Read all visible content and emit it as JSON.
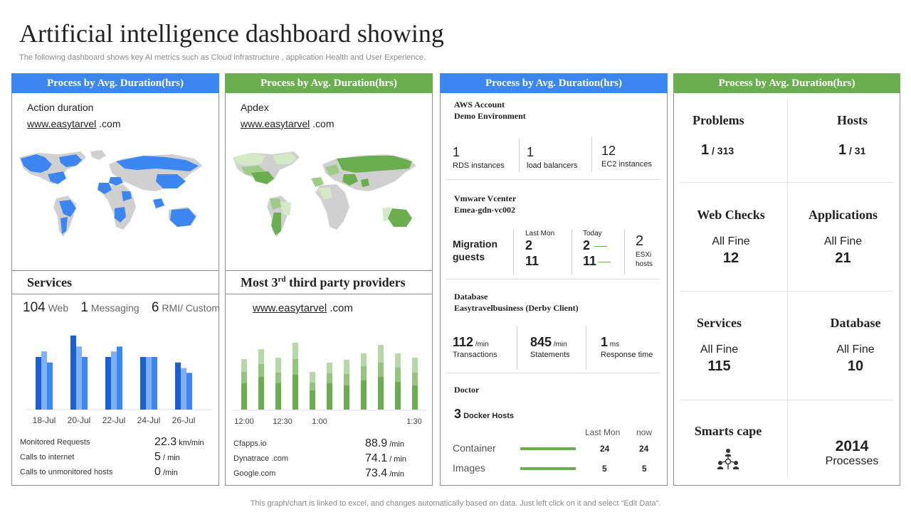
{
  "page": {
    "title": "Artificial intelligence dashboard showing",
    "subtitle": "The following dashboard shows key AI  metrics such as Cloud infrastructure , application Health and User Experience.",
    "footer": "This graph/chart is linked to excel,  and changes automatically based on data. Just left click on it and select “Edit Data”."
  },
  "colors": {
    "blue": "#3b86f0",
    "green": "#6aae4f",
    "dark_blue": "#1a5fd6",
    "light_blue": "#7fb0f2",
    "light_green": "#b7d8a6"
  },
  "panel1": {
    "header": "Process by Avg. Duration(hrs)",
    "label": "Action duration",
    "link_a": "www.easy",
    "link_b": "tarvel",
    "link_c": " .com",
    "map_icon": "world-map-blue",
    "section_title": "Services",
    "stats": [
      {
        "value": "104",
        "label": " Web"
      },
      {
        "value": "1",
        "label": " Messaging"
      },
      {
        "value": "6",
        "label": " RMI/ Custom"
      }
    ],
    "chart_data": {
      "type": "bar",
      "categories": [
        "18-Jul",
        "20-Jul",
        "22-Jul",
        "24-Jul",
        "26-Jul"
      ],
      "series": [
        {
          "values": [
            76,
            107,
            76,
            76,
            68
          ]
        },
        {
          "values": [
            84,
            91,
            84,
            76,
            60
          ]
        },
        {
          "values": [
            68,
            76,
            91,
            76,
            53
          ]
        }
      ],
      "ylim": [
        0,
        115
      ]
    },
    "metrics": [
      {
        "label": "Monitored Requests",
        "value": "22.3",
        "unit": " km/min"
      },
      {
        "label": "Calls to internet",
        "value": "5",
        "unit": "  / min"
      },
      {
        "label": "Calls to unmonitored hosts",
        "value": "0",
        "unit": " /min"
      }
    ]
  },
  "panel2": {
    "header": "Process by Avg. Duration(hrs)",
    "label": "Apdex",
    "link_a": "www.easy",
    "link_b": "tarvel",
    "link_c": " .com",
    "map_icon": "world-map-green",
    "section_title_a": "Most 3",
    "section_title_sup": "rd",
    "section_title_b": "  third party providers",
    "link2_a": "www.easy",
    "link2_b": "tarvel",
    "link2_c": "  .com",
    "chart_data": {
      "type": "bar",
      "x_ticks": [
        "12:00",
        "12:30",
        "1:00",
        "1:30"
      ],
      "series": [
        {
          "values": [
            37,
            46,
            37,
            49,
            27,
            37,
            34,
            41,
            46,
            39,
            34
          ]
        },
        {
          "values": [
            16,
            18,
            15,
            22,
            11,
            14,
            16,
            20,
            20,
            20,
            18
          ]
        },
        {
          "values": [
            18,
            21,
            21,
            23,
            15,
            15,
            20,
            18,
            25,
            20,
            21
          ]
        }
      ],
      "ylim": [
        0,
        100
      ]
    },
    "metrics": [
      {
        "label": "Cfapps.io",
        "value": "88.9",
        "unit": " /min"
      },
      {
        "label": "Dynatrace .com",
        "value": "74.1",
        "unit": " / min"
      },
      {
        "label": "Google.com",
        "value": "73.4",
        "unit": " /min"
      }
    ]
  },
  "panel3": {
    "header": "Process by Avg. Duration(hrs)",
    "aws": {
      "title_1": "AWS Account",
      "title_2": "Demo  Environment",
      "stats": [
        {
          "value": "1",
          "label": "RDS instances"
        },
        {
          "value": "1",
          "label": "load balancers"
        },
        {
          "value": "12",
          "label": "EC2 instances"
        }
      ]
    },
    "vmware": {
      "title_1": "Vmware  Vcenter",
      "title_2": "Emea-gdn-vc002",
      "label_1": "Migration",
      "label_2": "guests",
      "last_mon_label": "Last Mon",
      "last_mon_1": "2",
      "last_mon_2": "11",
      "today_label": "Today",
      "today_1": "2",
      "today_2": "11",
      "esxi_value": "2",
      "esxi_label_1": "ESXi",
      "esxi_label_2": "hosts"
    },
    "database": {
      "title_1": "Database",
      "title_2": "Easytravelbusiness  (Derby  Client)",
      "stats": [
        {
          "value": "112",
          "unit": " /min",
          "label": "Transactions"
        },
        {
          "value": "845",
          "unit": " /min",
          "label": "Statements"
        },
        {
          "value": "1",
          "unit": " ms",
          "label": "Response time"
        }
      ]
    },
    "doctor": {
      "title": "Doctor",
      "hosts_value": "3",
      "hosts_label": " Docker Hosts",
      "col_last": "Last Mon",
      "col_now": "now",
      "rows": [
        {
          "label": "Container",
          "last": "24",
          "now": "24"
        },
        {
          "label": "Images",
          "last": "5",
          "now": "5"
        }
      ]
    }
  },
  "panel4": {
    "header": "Process by Avg. Duration(hrs)",
    "problems": {
      "title": "Problems",
      "value": "1",
      "total": " / 313"
    },
    "hosts": {
      "title": "Hosts",
      "value": "1",
      "total": " / 31"
    },
    "web_checks": {
      "title": "Web Checks",
      "status": "All Fine",
      "value": "12"
    },
    "applications": {
      "title": "Applications",
      "status": "All Fine",
      "value": "21"
    },
    "services": {
      "title": "Services",
      "status": "All Fine",
      "value": "115"
    },
    "database": {
      "title": "Database",
      "status": "All Fine",
      "value": "10"
    },
    "smartscape": {
      "title": "Smarts cape",
      "icon": "network-people-icon"
    },
    "processes": {
      "value": "2014",
      "label": "Processes"
    }
  }
}
